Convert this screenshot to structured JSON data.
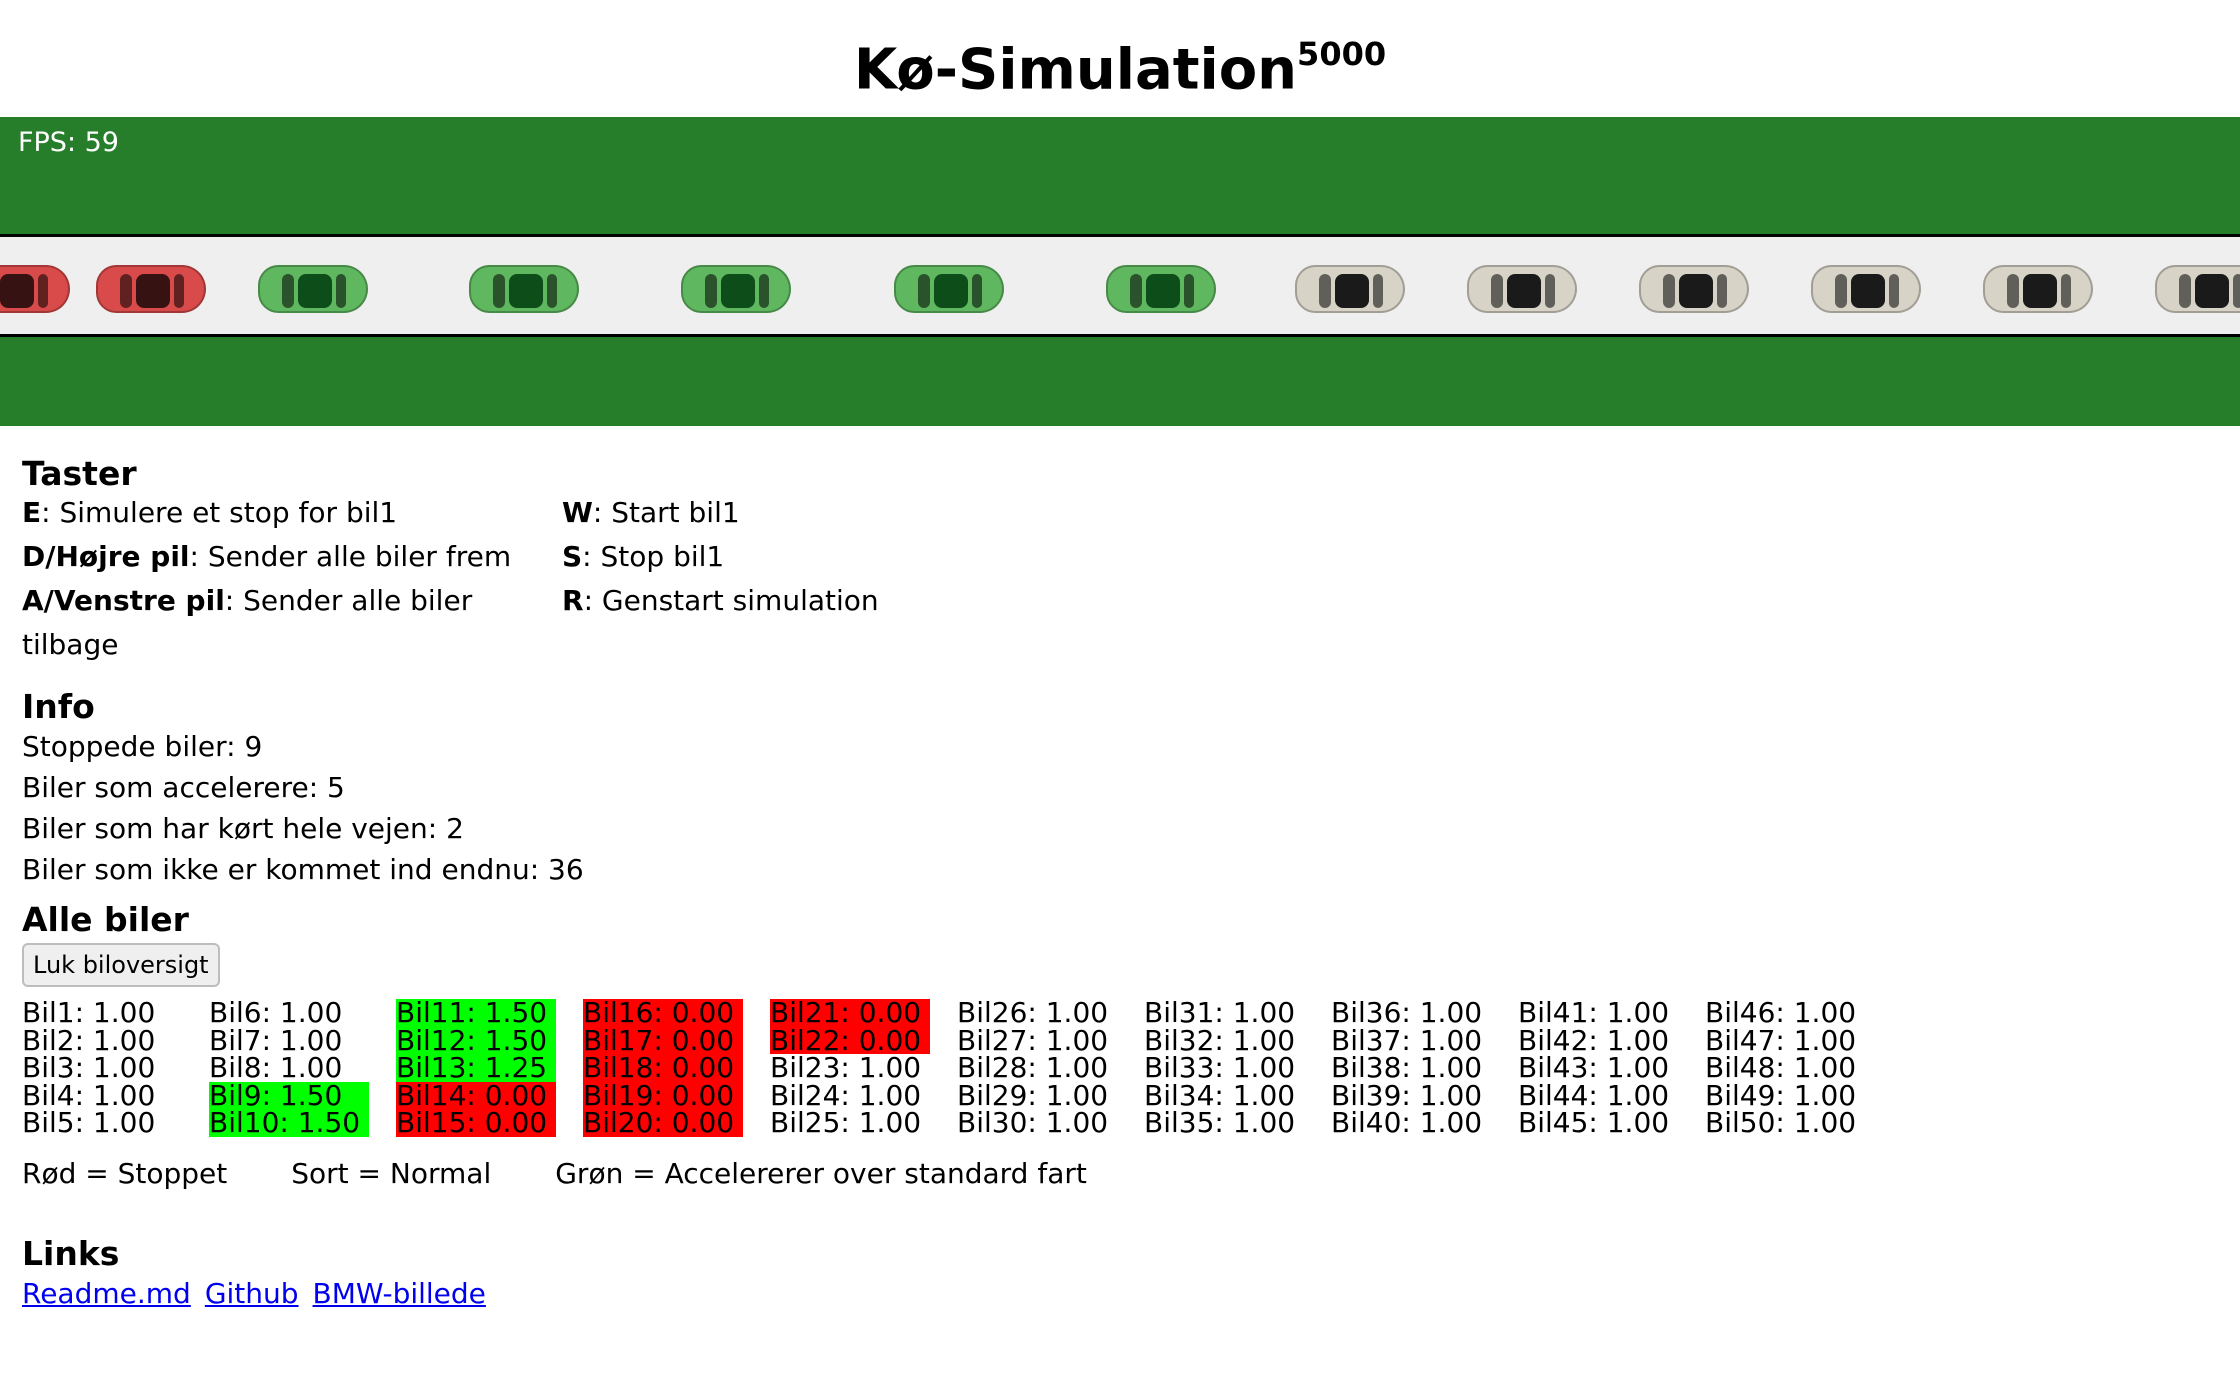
{
  "title": {
    "main": "Kø-Simulation",
    "sup": "5000"
  },
  "canvas": {
    "fps_label": "FPS: 59",
    "colors": {
      "grass": "#267e2b",
      "road": "#efefef",
      "stopped_car": "#d94a4a",
      "accelerating_car": "#5fb85f",
      "normal_car": "#d8d3c7"
    },
    "cars": [
      {
        "status": "stopped"
      },
      {
        "status": "stopped"
      },
      {
        "status": "accelerating"
      },
      {
        "status": "accelerating"
      },
      {
        "status": "accelerating"
      },
      {
        "status": "accelerating"
      },
      {
        "status": "accelerating"
      },
      {
        "status": "normal"
      },
      {
        "status": "normal"
      },
      {
        "status": "normal"
      },
      {
        "status": "normal"
      },
      {
        "status": "normal"
      },
      {
        "status": "normal"
      }
    ]
  },
  "keys": {
    "heading": "Taster",
    "items": [
      {
        "key": "E",
        "desc": ": Simulere et stop for bil1"
      },
      {
        "key": "W",
        "desc": ": Start bil1"
      },
      {
        "key": "D/Højre pil",
        "desc": ": Sender alle biler frem"
      },
      {
        "key": "S",
        "desc": ": Stop bil1"
      },
      {
        "key": "A/Venstre pil",
        "desc": ": Sender alle biler tilbage"
      },
      {
        "key": "R",
        "desc": ": Genstart simulation"
      }
    ]
  },
  "info": {
    "heading": "Info",
    "lines": [
      "Stoppede biler: 9",
      "Biler som accelerere: 5",
      "Biler som har kørt hele vejen: 2",
      "Biler som ikke er kommet ind endnu: 36"
    ]
  },
  "all_cars": {
    "heading": "Alle biler",
    "button": "Luk biloversigt",
    "columns": [
      [
        {
          "t": "Bil1: 1.00",
          "s": "normal"
        },
        {
          "t": "Bil2: 1.00",
          "s": "normal"
        },
        {
          "t": "Bil3: 1.00",
          "s": "normal"
        },
        {
          "t": "Bil4: 1.00",
          "s": "normal"
        },
        {
          "t": "Bil5: 1.00",
          "s": "normal"
        }
      ],
      [
        {
          "t": "Bil6: 1.00",
          "s": "normal"
        },
        {
          "t": "Bil7: 1.00",
          "s": "normal"
        },
        {
          "t": "Bil8: 1.00",
          "s": "normal"
        },
        {
          "t": "Bil9: 1.50",
          "s": "accel"
        },
        {
          "t": "Bil10: 1.50",
          "s": "accel"
        }
      ],
      [
        {
          "t": "Bil11: 1.50",
          "s": "accel"
        },
        {
          "t": "Bil12: 1.50",
          "s": "accel"
        },
        {
          "t": "Bil13: 1.25",
          "s": "accel"
        },
        {
          "t": "Bil14: 0.00",
          "s": "stopped"
        },
        {
          "t": "Bil15: 0.00",
          "s": "stopped"
        }
      ],
      [
        {
          "t": "Bil16: 0.00",
          "s": "stopped"
        },
        {
          "t": "Bil17: 0.00",
          "s": "stopped"
        },
        {
          "t": "Bil18: 0.00",
          "s": "stopped"
        },
        {
          "t": "Bil19: 0.00",
          "s": "stopped"
        },
        {
          "t": "Bil20: 0.00",
          "s": "stopped"
        }
      ],
      [
        {
          "t": "Bil21: 0.00",
          "s": "stopped"
        },
        {
          "t": "Bil22: 0.00",
          "s": "stopped"
        },
        {
          "t": "Bil23: 1.00",
          "s": "normal"
        },
        {
          "t": "Bil24: 1.00",
          "s": "normal"
        },
        {
          "t": "Bil25: 1.00",
          "s": "normal"
        }
      ],
      [
        {
          "t": "Bil26: 1.00",
          "s": "normal"
        },
        {
          "t": "Bil27: 1.00",
          "s": "normal"
        },
        {
          "t": "Bil28: 1.00",
          "s": "normal"
        },
        {
          "t": "Bil29: 1.00",
          "s": "normal"
        },
        {
          "t": "Bil30: 1.00",
          "s": "normal"
        }
      ],
      [
        {
          "t": "Bil31: 1.00",
          "s": "normal"
        },
        {
          "t": "Bil32: 1.00",
          "s": "normal"
        },
        {
          "t": "Bil33: 1.00",
          "s": "normal"
        },
        {
          "t": "Bil34: 1.00",
          "s": "normal"
        },
        {
          "t": "Bil35: 1.00",
          "s": "normal"
        }
      ],
      [
        {
          "t": "Bil36: 1.00",
          "s": "normal"
        },
        {
          "t": "Bil37: 1.00",
          "s": "normal"
        },
        {
          "t": "Bil38: 1.00",
          "s": "normal"
        },
        {
          "t": "Bil39: 1.00",
          "s": "normal"
        },
        {
          "t": "Bil40: 1.00",
          "s": "normal"
        }
      ],
      [
        {
          "t": "Bil41: 1.00",
          "s": "normal"
        },
        {
          "t": "Bil42: 1.00",
          "s": "normal"
        },
        {
          "t": "Bil43: 1.00",
          "s": "normal"
        },
        {
          "t": "Bil44: 1.00",
          "s": "normal"
        },
        {
          "t": "Bil45: 1.00",
          "s": "normal"
        }
      ],
      [
        {
          "t": "Bil46: 1.00",
          "s": "normal"
        },
        {
          "t": "Bil47: 1.00",
          "s": "normal"
        },
        {
          "t": "Bil48: 1.00",
          "s": "normal"
        },
        {
          "t": "Bil49: 1.00",
          "s": "normal"
        },
        {
          "t": "Bil50: 1.00",
          "s": "normal"
        }
      ]
    ],
    "legend": [
      "Rød = Stoppet",
      "Sort = Normal",
      "Grøn = Accelererer over standard fart"
    ]
  },
  "links": {
    "heading": "Links",
    "items": [
      "Readme.md",
      "Github",
      "BMW-billede"
    ]
  }
}
